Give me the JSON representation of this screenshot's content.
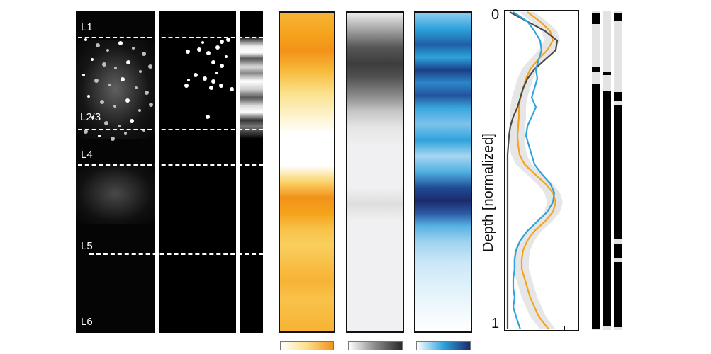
{
  "layer_labels": [
    "L1",
    "L2/3",
    "L4",
    "L5",
    "L6"
  ],
  "axis": {
    "ylabel": "Depth [normalized]",
    "tick_top": "0",
    "tick_bottom": "1"
  },
  "colors": {
    "orange": "#f7a21b",
    "gray": "#4a4a4a",
    "blue": "#2ea3dc",
    "navy": "#1b2a6b",
    "band": "#dcdcdc"
  },
  "chart_data": {
    "type": "line",
    "ylabel": "Depth [normalized]",
    "ylim": [
      0,
      1
    ],
    "series": [
      {
        "color": "orange",
        "depth": [
          0.0,
          0.03,
          0.06,
          0.09,
          0.12,
          0.15,
          0.18,
          0.21,
          0.24,
          0.27,
          0.3,
          0.33,
          0.36,
          0.39,
          0.42,
          0.45,
          0.48,
          0.51,
          0.54,
          0.57,
          0.6,
          0.63,
          0.66,
          0.69,
          0.72,
          0.75,
          0.78,
          0.81,
          0.84,
          0.87,
          0.9,
          0.93,
          0.96,
          1.0
        ],
        "values": [
          0.3,
          0.48,
          0.62,
          0.66,
          0.58,
          0.45,
          0.34,
          0.28,
          0.24,
          0.2,
          0.18,
          0.18,
          0.17,
          0.16,
          0.17,
          0.19,
          0.26,
          0.4,
          0.55,
          0.66,
          0.7,
          0.66,
          0.55,
          0.4,
          0.3,
          0.24,
          0.22,
          0.22,
          0.26,
          0.3,
          0.34,
          0.4,
          0.46,
          0.6
        ]
      },
      {
        "color": "gray",
        "depth": [
          0.0,
          0.03,
          0.06,
          0.09,
          0.12,
          0.15,
          0.18,
          0.21,
          0.24,
          0.27,
          0.3,
          0.33,
          0.36,
          0.39,
          0.42,
          0.45,
          0.48,
          0.51,
          0.54,
          0.57,
          0.6,
          0.63,
          0.66,
          0.69,
          0.72,
          0.75,
          0.78,
          0.81,
          0.84,
          0.87,
          0.9,
          0.93,
          0.96,
          1.0
        ],
        "values": [
          0.05,
          0.3,
          0.55,
          0.72,
          0.7,
          0.55,
          0.4,
          0.3,
          0.24,
          0.2,
          0.16,
          0.1,
          0.06,
          0.04,
          0.03,
          0.02,
          0.02,
          0.02,
          0.02,
          0.02,
          0.02,
          0.02,
          0.02,
          0.02,
          0.02,
          0.02,
          0.02,
          0.02,
          0.02,
          0.02,
          0.02,
          0.02,
          0.02,
          0.02
        ]
      },
      {
        "color": "blue",
        "depth": [
          0.0,
          0.03,
          0.06,
          0.09,
          0.12,
          0.15,
          0.18,
          0.21,
          0.24,
          0.27,
          0.3,
          0.33,
          0.36,
          0.39,
          0.42,
          0.45,
          0.48,
          0.51,
          0.54,
          0.57,
          0.6,
          0.63,
          0.66,
          0.69,
          0.72,
          0.75,
          0.78,
          0.81,
          0.84,
          0.87,
          0.9,
          0.93,
          0.96,
          1.0
        ],
        "values": [
          0.1,
          0.3,
          0.4,
          0.48,
          0.5,
          0.46,
          0.42,
          0.44,
          0.4,
          0.36,
          0.42,
          0.36,
          0.3,
          0.28,
          0.32,
          0.36,
          0.4,
          0.5,
          0.62,
          0.68,
          0.66,
          0.58,
          0.44,
          0.3,
          0.2,
          0.14,
          0.12,
          0.12,
          0.1,
          0.1,
          0.12,
          0.1,
          0.14,
          0.2
        ]
      }
    ]
  },
  "cells": [
    [
      265,
      73,
      3
    ],
    [
      281,
      70,
      3
    ],
    [
      294,
      75,
      3
    ],
    [
      307,
      67,
      3
    ],
    [
      313,
      59,
      3
    ],
    [
      322,
      56,
      3
    ],
    [
      301,
      88,
      3
    ],
    [
      313,
      93,
      3
    ],
    [
      276,
      106,
      3
    ],
    [
      289,
      111,
      3
    ],
    [
      301,
      115,
      3
    ],
    [
      312,
      121,
      3
    ],
    [
      327,
      126,
      3
    ],
    [
      263,
      121,
      3
    ],
    [
      298,
      124,
      3
    ],
    [
      293,
      165,
      3
    ],
    [
      286,
      60,
      2
    ],
    [
      319,
      80,
      2
    ],
    [
      266,
      113,
      2
    ],
    [
      306,
      103,
      2
    ]
  ],
  "dots_l23": [
    [
      121,
      40
    ],
    [
      138,
      48
    ],
    [
      152,
      55
    ],
    [
      170,
      45
    ],
    [
      188,
      52
    ],
    [
      203,
      60
    ],
    [
      130,
      68
    ],
    [
      147,
      75
    ],
    [
      163,
      80
    ],
    [
      181,
      72
    ],
    [
      198,
      85
    ],
    [
      212,
      78
    ],
    [
      118,
      90
    ],
    [
      136,
      98
    ],
    [
      155,
      104
    ],
    [
      173,
      96
    ],
    [
      192,
      108
    ],
    [
      207,
      115
    ],
    [
      125,
      120
    ],
    [
      144,
      128
    ],
    [
      162,
      134
    ],
    [
      180,
      126
    ],
    [
      197,
      140
    ],
    [
      213,
      132
    ],
    [
      131,
      150
    ],
    [
      150,
      158
    ],
    [
      168,
      162
    ],
    [
      186,
      155
    ],
    [
      203,
      168
    ],
    [
      121,
      170
    ],
    [
      140,
      176
    ],
    [
      159,
      180
    ],
    [
      177,
      172
    ]
  ],
  "side_bars": [
    {
      "left": 835,
      "segments": [
        [
          18,
          34
        ],
        [
          95,
          102
        ],
        [
          118,
          465
        ]
      ]
    },
    {
      "left": 850,
      "segments": [
        [
          102,
          106
        ],
        [
          128,
          460
        ]
      ]
    },
    {
      "left": 866,
      "segments": [
        [
          18,
          30
        ],
        [
          130,
          142
        ],
        [
          148,
          338
        ],
        [
          345,
          365
        ],
        [
          370,
          462
        ]
      ]
    }
  ]
}
